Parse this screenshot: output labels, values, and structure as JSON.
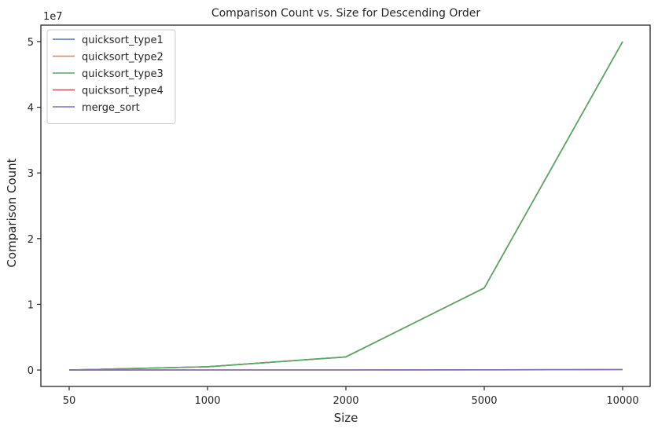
{
  "chart_data": {
    "type": "line",
    "title": "Comparison Count vs. Size for Descending Order",
    "xlabel": "Size",
    "ylabel": "Comparison Count",
    "x_scale": "categorical",
    "categories": [
      "50",
      "1000",
      "2000",
      "5000",
      "10000"
    ],
    "y_exponent_label": "1e7",
    "y_multiplier": 10000000,
    "ylim": [
      -2500000,
      52500000
    ],
    "y_ticks": [
      0,
      10000000,
      20000000,
      30000000,
      40000000,
      50000000
    ],
    "y_tick_labels": [
      "0",
      "1",
      "2",
      "3",
      "4",
      "5"
    ],
    "grid": false,
    "legend_position": "top-left",
    "series": [
      {
        "name": "quicksort_type1",
        "color": "#4c72b0",
        "values": [
          1225,
          499500,
          1999000,
          12497500,
          49995000
        ]
      },
      {
        "name": "quicksort_type2",
        "color": "#dd8452",
        "values": [
          1225,
          499500,
          1999000,
          12497500,
          49995000
        ]
      },
      {
        "name": "quicksort_type3",
        "color": "#55a868",
        "values": [
          1225,
          499500,
          1999000,
          12497500,
          49995000
        ]
      },
      {
        "name": "quicksort_type4",
        "color": "#c44e52",
        "values": [
          200,
          5000,
          11000,
          32000,
          70000
        ]
      },
      {
        "name": "merge_sort",
        "color": "#8172b3",
        "values": [
          150,
          5000,
          11000,
          32000,
          70000
        ]
      }
    ]
  }
}
